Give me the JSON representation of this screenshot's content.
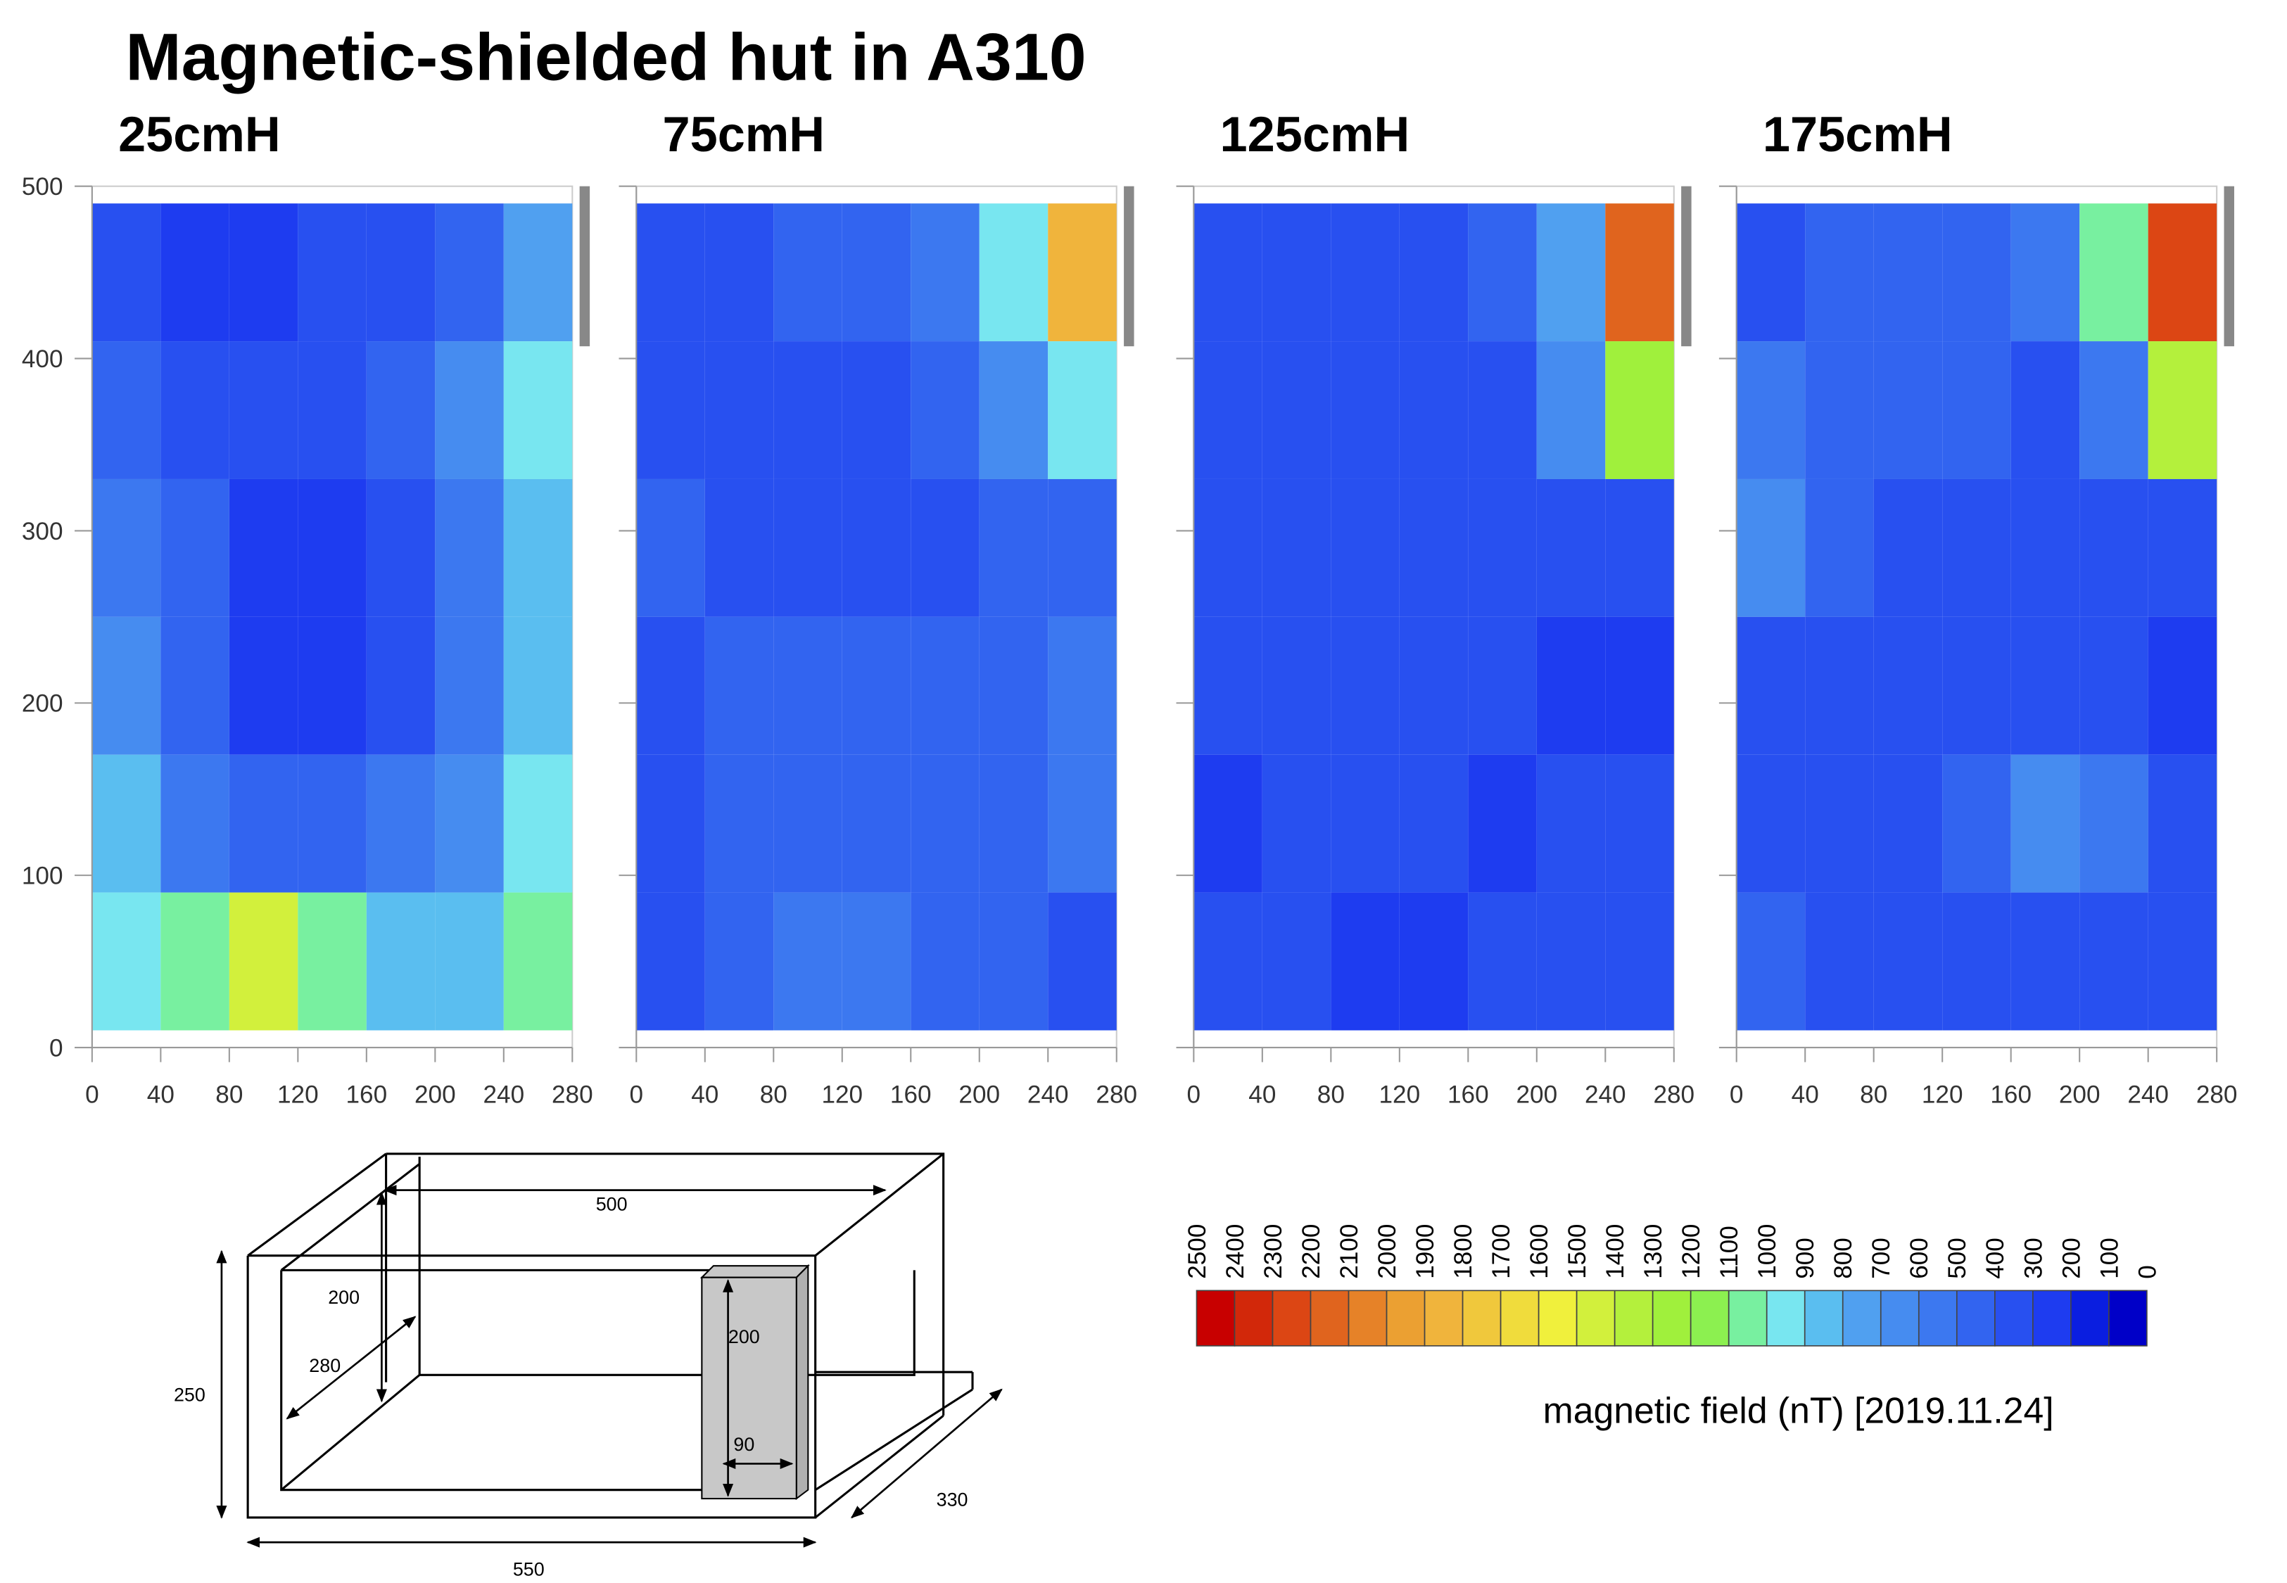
{
  "title": "Magnetic-shielded hut in A310",
  "chart_data": [
    {
      "type": "contour",
      "title": "25cmH",
      "x": [
        20,
        60,
        100,
        140,
        180,
        220,
        260
      ],
      "y": [
        450,
        370,
        290,
        210,
        130,
        50
      ],
      "values": [
        [
          300,
          200,
          200,
          300,
          350,
          400,
          700
        ],
        [
          400,
          350,
          300,
          300,
          400,
          600,
          900
        ],
        [
          500,
          400,
          250,
          250,
          300,
          550,
          800
        ],
        [
          650,
          400,
          250,
          250,
          350,
          550,
          800
        ],
        [
          800,
          550,
          450,
          450,
          550,
          600,
          900
        ],
        [
          900,
          1000,
          1400,
          1000,
          800,
          800,
          1000
        ]
      ],
      "xlim": [
        0,
        280
      ],
      "ylim": [
        0,
        500
      ],
      "xticks": [
        0,
        40,
        80,
        120,
        160,
        200,
        240,
        280
      ],
      "yticks": [
        0,
        100,
        200,
        300,
        400,
        500
      ],
      "ytick_labels": true
    },
    {
      "type": "contour",
      "title": "75cmH",
      "x": [
        20,
        60,
        100,
        140,
        180,
        220,
        260
      ],
      "y": [
        450,
        370,
        290,
        210,
        130,
        50
      ],
      "values": [
        [
          300,
          350,
          400,
          450,
          500,
          900,
          1800
        ],
        [
          350,
          350,
          300,
          350,
          400,
          600,
          900
        ],
        [
          400,
          350,
          300,
          350,
          350,
          400,
          450
        ],
        [
          350,
          400,
          400,
          400,
          400,
          400,
          500
        ],
        [
          300,
          400,
          400,
          400,
          400,
          400,
          500
        ],
        [
          350,
          450,
          500,
          500,
          450,
          400,
          350
        ]
      ],
      "xlim": [
        0,
        280
      ],
      "ylim": [
        0,
        500
      ],
      "xticks": [
        0,
        40,
        80,
        120,
        160,
        200,
        240,
        280
      ],
      "yticks": [
        0,
        100,
        200,
        300,
        400,
        500
      ],
      "ytick_labels": false
    },
    {
      "type": "contour",
      "title": "125cmH",
      "x": [
        20,
        60,
        100,
        140,
        180,
        220,
        260
      ],
      "y": [
        450,
        370,
        290,
        210,
        130,
        50
      ],
      "values": [
        [
          350,
          300,
          300,
          350,
          400,
          700,
          2100
        ],
        [
          350,
          300,
          300,
          300,
          350,
          600,
          1200
        ],
        [
          350,
          300,
          300,
          300,
          300,
          300,
          300
        ],
        [
          300,
          300,
          300,
          300,
          300,
          250,
          250
        ],
        [
          250,
          300,
          300,
          300,
          250,
          300,
          300
        ],
        [
          300,
          300,
          200,
          250,
          300,
          300,
          300
        ]
      ],
      "xlim": [
        0,
        280
      ],
      "ylim": [
        0,
        500
      ],
      "xticks": [
        0,
        40,
        80,
        120,
        160,
        200,
        240,
        280
      ],
      "yticks": [
        0,
        100,
        200,
        300,
        400,
        500
      ],
      "ytick_labels": false
    },
    {
      "type": "contour",
      "title": "175cmH",
      "x": [
        20,
        60,
        100,
        140,
        180,
        220,
        260
      ],
      "y": [
        450,
        370,
        290,
        210,
        130,
        50
      ],
      "values": [
        [
          350,
          400,
          400,
          450,
          500,
          1000,
          2200
        ],
        [
          550,
          450,
          400,
          400,
          350,
          500,
          1300
        ],
        [
          600,
          450,
          350,
          350,
          350,
          350,
          300
        ],
        [
          350,
          350,
          350,
          350,
          350,
          300,
          250
        ],
        [
          350,
          350,
          350,
          400,
          650,
          550,
          350
        ],
        [
          400,
          350,
          350,
          350,
          350,
          300,
          300
        ]
      ],
      "xlim": [
        0,
        280
      ],
      "ylim": [
        0,
        500
      ],
      "xticks": [
        0,
        40,
        80,
        120,
        160,
        200,
        240,
        280
      ],
      "yticks": [
        0,
        100,
        200,
        300,
        400,
        500
      ],
      "ytick_labels": false
    }
  ],
  "colorbar": {
    "label": "magnetic field (nT) [2019.11.24]",
    "levels": [
      2500,
      2400,
      2300,
      2200,
      2100,
      2000,
      1900,
      1800,
      1700,
      1600,
      1500,
      1400,
      1300,
      1200,
      1100,
      1000,
      900,
      800,
      700,
      600,
      500,
      400,
      300,
      200,
      100,
      0
    ],
    "colors": [
      "#c80000",
      "#d2280a",
      "#dc4614",
      "#e0641e",
      "#e68228",
      "#eba032",
      "#f0b43c",
      "#f0c83c",
      "#f0dc3c",
      "#f0f03c",
      "#d2f03c",
      "#b4f03c",
      "#a0f03c",
      "#8cf050",
      "#78f0a0",
      "#78e6f0",
      "#5abef0",
      "#50a0f0",
      "#468cf0",
      "#3c78f0",
      "#3264f0",
      "#2850f0",
      "#1e3cf0",
      "#0a1ee0",
      "#0000c8"
    ]
  },
  "diagram": {
    "labels": [
      "500",
      "200",
      "280",
      "250",
      "200",
      "90",
      "330",
      "550"
    ]
  }
}
